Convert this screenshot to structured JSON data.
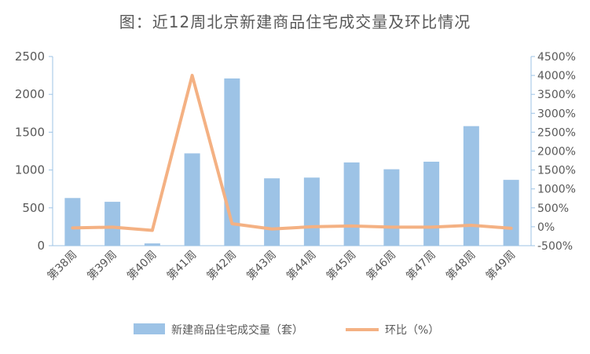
{
  "chart_data": {
    "type": "bar",
    "title": "图：近12周北京新建商品住宅成交量及环比情况",
    "categories": [
      "第38周",
      "第39周",
      "第40周",
      "第41周",
      "第42周",
      "第43周",
      "第44周",
      "第45周",
      "第46周",
      "第47周",
      "第48周",
      "第49周"
    ],
    "series": [
      {
        "name": "新建商品住宅成交量（套）",
        "type": "bar",
        "axis": "left",
        "color": "#9DC3E6",
        "values": [
          630,
          580,
          30,
          1220,
          2210,
          890,
          900,
          1100,
          1010,
          1110,
          1580,
          870
        ]
      },
      {
        "name": "环比（%）",
        "type": "line",
        "axis": "right",
        "color": "#F4B183",
        "values": [
          -30,
          -10,
          -95,
          4000,
          80,
          -60,
          0,
          20,
          -10,
          -10,
          40,
          -40
        ]
      }
    ],
    "y_left": {
      "min": 0,
      "max": 2500,
      "ticks": [
        "0",
        "500",
        "1000",
        "1500",
        "2000",
        "2500"
      ]
    },
    "y_right": {
      "min": -500,
      "max": 4500,
      "ticks": [
        "-500%",
        "0%",
        "500%",
        "1000%",
        "1500%",
        "2000%",
        "2500%",
        "3000%",
        "3500%",
        "4000%",
        "4500%"
      ]
    },
    "grid": false,
    "legend": "bottom"
  }
}
